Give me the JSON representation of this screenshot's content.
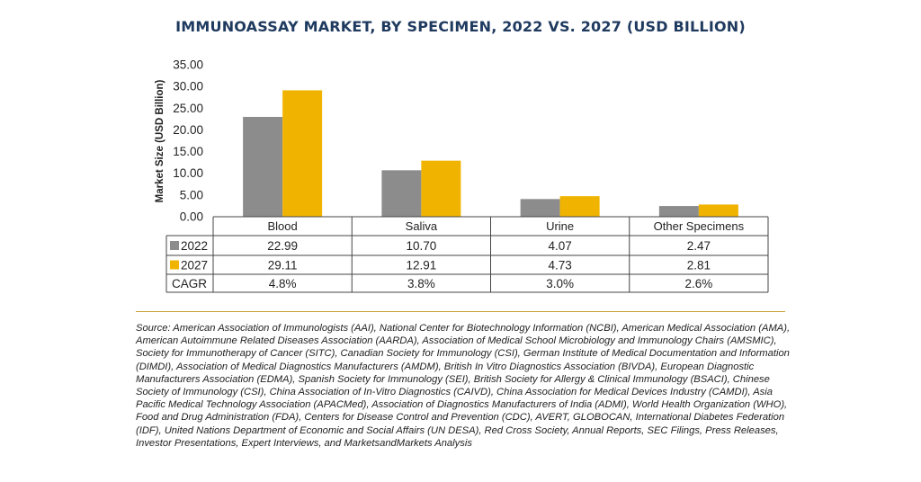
{
  "title": "IMMUNOASSAY MARKET, BY SPECIMEN, 2022 VS. 2027 (USD BILLION)",
  "source": "Source: American Association of Immunologists (AAI), National Center for Biotechnology Information (NCBI), American Medical Association (AMA), American Autoimmune Related Diseases Association (AARDA), Association of Medical School Microbiology and Immunology Chairs (AMSMIC), Society for Immunotherapy of Cancer (SITC), Canadian Society for Immunology (CSI), German Institute of Medical Documentation and Information (DIMDI), Association of Medical Diagnostics Manufacturers (AMDM), British In Vitro Diagnostics Association (BIVDA), European Diagnostic Manufacturers Association (EDMA), Spanish Society for Immunology (SEI), British Society for Allergy & Clinical Immunology (BSACI), Chinese Society of Immunology (CSI), China Association of In-Vitro Diagnostics (CAIVD), China Association for Medical Devices Industry (CAMDI), Asia Pacific Medical Technology Association (APACMed), Association of Diagnostics Manufacturers of India (ADMI), World Health Organization (WHO), Food and Drug Administration (FDA), Centers for Disease Control and Prevention (CDC), AVERT, GLOBOCAN, International Diabetes Federation (IDF), United Nations Department of Economic and Social Affairs (UN DESA), Red Cross Society, Annual Reports, SEC Filings, Press Releases, Investor Presentations, Expert Interviews, and MarketsandMarkets Analysis",
  "chart_data": {
    "type": "bar",
    "categories": [
      "Blood",
      "Saliva",
      "Urine",
      "Other Specimens"
    ],
    "series": [
      {
        "name": "2022",
        "values": [
          22.99,
          10.7,
          4.07,
          2.47
        ],
        "color": "#8c8c8c",
        "labels": [
          "22.99",
          "10.70",
          "4.07",
          "2.47"
        ]
      },
      {
        "name": "2027",
        "values": [
          29.11,
          12.91,
          4.73,
          2.81
        ],
        "color": "#f0b400",
        "labels": [
          "29.11",
          "12.91",
          "4.73",
          "2.81"
        ]
      }
    ],
    "cagr": {
      "label": "CAGR",
      "values": [
        "4.8%",
        "3.8%",
        "3.0%",
        "2.6%"
      ]
    },
    "ylabel": "Market Size (USD Billion)",
    "ylim": [
      0,
      35
    ],
    "yticks": [
      "0.00",
      "5.00",
      "10.00",
      "15.00",
      "20.00",
      "25.00",
      "30.00",
      "35.00"
    ],
    "grid": false,
    "legend": "data-table"
  }
}
